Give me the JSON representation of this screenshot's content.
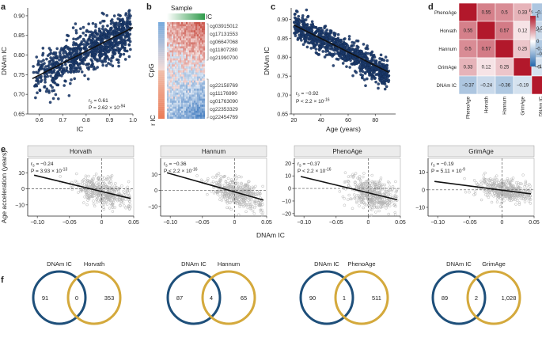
{
  "panel_letters": [
    "a",
    "b",
    "c",
    "d",
    "e",
    "f"
  ],
  "colors": {
    "scatter_a": "#1b3a6b",
    "scatter_c": "#1b3a6b",
    "scatter_e": "#b3b3b3",
    "fit": "#111111",
    "ic_bar": "#2e9a4a",
    "venn_ic": "#1e4f7a",
    "venn_clock": "#d4a93c",
    "hm_pos": "#b2182b",
    "hm_neg": "#2166ac"
  },
  "chart_data": [
    {
      "id": "a",
      "type": "scatter",
      "xlabel": "IC",
      "ylabel": "DNAm IC",
      "xlim": [
        0.55,
        1.0
      ],
      "ylim": [
        0.65,
        0.92
      ],
      "xticks": [
        0.6,
        0.7,
        0.8,
        0.9,
        1.0
      ],
      "yticks": [
        0.65,
        0.7,
        0.75,
        0.8,
        0.85,
        0.9
      ],
      "fit": {
        "x": [
          0.57,
          1.0
        ],
        "y": [
          0.74,
          0.87
        ]
      },
      "n_points": 900,
      "stats": [
        "r_s = 0.61",
        "P = 2.62 × 10^-94"
      ]
    },
    {
      "id": "b",
      "type": "heatmap",
      "title": "Sample",
      "col_bar_label": "IC",
      "row_label": "CpG",
      "row_bar_label": "r IC",
      "rows_top": [
        "cg03915012",
        "cg17131553",
        "cg06647068",
        "cg11807280",
        "cg21990700"
      ],
      "rows_bottom": [
        "cg22158769",
        "cg11176990",
        "cg01763090",
        "cg22353329",
        "cg22454769"
      ]
    },
    {
      "id": "c",
      "type": "scatter",
      "xlabel": "Age (years)",
      "ylabel": "DNAm IC",
      "xlim": [
        18,
        95
      ],
      "ylim": [
        0.65,
        0.93
      ],
      "xticks": [
        20,
        40,
        60,
        80
      ],
      "yticks": [
        0.65,
        0.7,
        0.75,
        0.8,
        0.85,
        0.9
      ],
      "fit": {
        "x": [
          20,
          90
        ],
        "y": [
          0.885,
          0.76
        ]
      },
      "n_points": 900,
      "stats": [
        "r_s = −0.92",
        "P < 2.2 × 10^-16"
      ]
    },
    {
      "id": "d",
      "type": "heatmap",
      "labels": [
        "PhenoAge",
        "Horvath",
        "Hannum",
        "GrimAge",
        "DNAm IC"
      ],
      "matrix": [
        [
          1,
          0.55,
          0.5,
          0.33,
          -0.37
        ],
        [
          0.55,
          1,
          0.57,
          0.12,
          -0.24
        ],
        [
          0.5,
          0.57,
          1,
          0.25,
          -0.36
        ],
        [
          0.33,
          0.12,
          0.25,
          1,
          -0.19
        ],
        [
          -0.37,
          -0.24,
          -0.36,
          -0.19,
          1
        ]
      ],
      "scale_label": "r_s",
      "scale_ticks": [
        "1",
        "0.5",
        "0",
        "−0.5",
        "−1"
      ]
    },
    {
      "id": "e",
      "type": "scatter",
      "ylabel": "Age acceleration (years)",
      "xlabel": "DNAm IC",
      "xlim": [
        -0.115,
        0.05
      ],
      "xticks": [
        -0.1,
        -0.05,
        0,
        0.05
      ],
      "xtick_labels": [
        "−0.10",
        "−0.05",
        "0",
        "0.05"
      ],
      "panels": [
        {
          "title": "Horvath",
          "ylim": [
            -17,
            19
          ],
          "yticks": [
            -10,
            0,
            10
          ],
          "ytick_labels": [
            "−10",
            "0",
            "10"
          ],
          "fit": [
            [
              -0.105,
              8.5
            ],
            [
              0.045,
              -6
            ]
          ],
          "spread": 4,
          "stats": [
            "r_s = −0.24",
            "P = 3.93 × 10^-13"
          ]
        },
        {
          "title": "Hannum",
          "ylim": [
            -16,
            20
          ],
          "yticks": [
            -10,
            0,
            10
          ],
          "ytick_labels": [
            "−10",
            "0",
            "10"
          ],
          "fit": [
            [
              -0.105,
              11
            ],
            [
              0.045,
              -6
            ]
          ],
          "spread": 4,
          "stats": [
            "r_s = −0.36",
            "P < 2.2 × 10^-16"
          ]
        },
        {
          "title": "PhenoAge",
          "ylim": [
            -22,
            24
          ],
          "yticks": [
            -20,
            -10,
            0,
            10,
            20
          ],
          "ytick_labels": [
            "−20",
            "−10",
            "0",
            "10",
            "20"
          ],
          "fit": [
            [
              -0.105,
              9.5
            ],
            [
              0.045,
              -9
            ]
          ],
          "spread": 6,
          "stats": [
            "r_s = −0.37",
            "P < 2.2 × 10^-16"
          ]
        },
        {
          "title": "GrimAge",
          "ylim": [
            -15,
            18
          ],
          "yticks": [
            -10,
            0,
            10
          ],
          "ytick_labels": [
            "−10",
            "0",
            "10"
          ],
          "fit": [
            [
              -0.105,
              4.8
            ],
            [
              0.045,
              -2.3
            ]
          ],
          "spread": 3,
          "stats": [
            "r_s = −0.19",
            "P = 5.11 × 10^-9"
          ]
        }
      ]
    }
  ],
  "venns": [
    {
      "left_label": "DNAm IC",
      "right_label": "Horvath",
      "left": "91",
      "both": "0",
      "right": "353"
    },
    {
      "left_label": "DNAm IC",
      "right_label": "Hannum",
      "left": "87",
      "both": "4",
      "right": "65"
    },
    {
      "left_label": "DNAm IC",
      "right_label": "PhenoAge",
      "left": "90",
      "both": "1",
      "right": "511"
    },
    {
      "left_label": "DNAm IC",
      "right_label": "GrimAge",
      "left": "89",
      "both": "2",
      "right": "1,028"
    }
  ]
}
